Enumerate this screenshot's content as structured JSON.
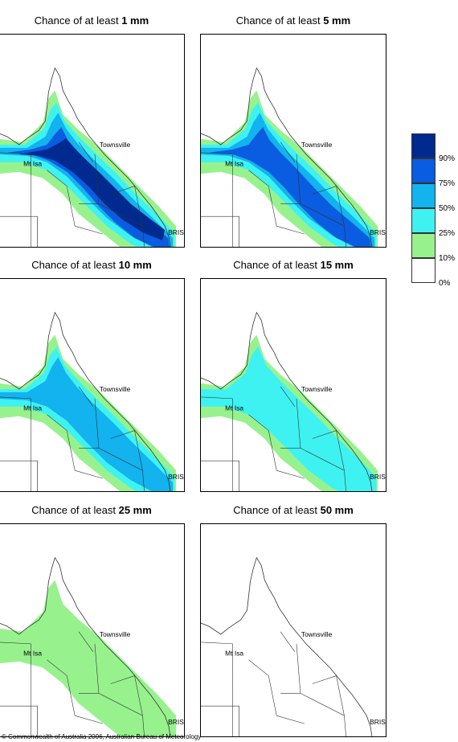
{
  "panels": [
    {
      "title_prefix": "Chance of at least",
      "amount": "1 mm",
      "level": 5
    },
    {
      "title_prefix": "Chance of at least",
      "amount": "5 mm",
      "level": 4
    },
    {
      "title_prefix": "Chance of at least",
      "amount": "10 mm",
      "level": 3
    },
    {
      "title_prefix": "Chance of at least",
      "amount": "15 mm",
      "level": 2
    },
    {
      "title_prefix": "Chance of at least",
      "amount": "25 mm",
      "level": 1
    },
    {
      "title_prefix": "Chance of at least",
      "amount": "50 mm",
      "level": 0
    }
  ],
  "places": {
    "townsville": "Townsville",
    "mt_isa": "Mt Isa",
    "bris": "BRIS"
  },
  "legend": {
    "labels": [
      "90%",
      "75%",
      "50%",
      "25%",
      "10%",
      "0%"
    ],
    "colors": [
      "#002a8f",
      "#0a5ce0",
      "#12b3ee",
      "#3ff2f2",
      "#97f28e",
      "#ffffff"
    ]
  },
  "copyright": "© Commonwealth of Australia 2006, Australian Bureau of Meteorology"
}
